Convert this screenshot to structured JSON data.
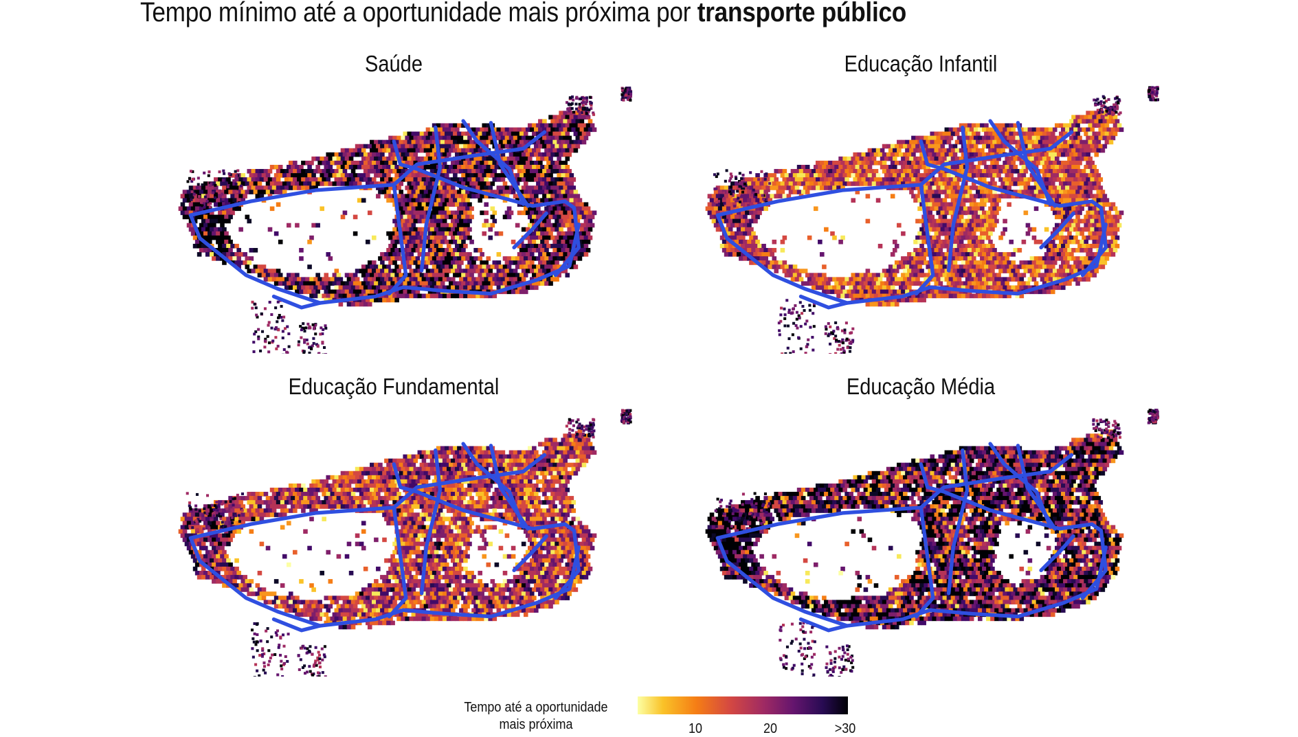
{
  "title": {
    "prefix": "Tempo mínimo até a oportunidade mais próxima por ",
    "bold": "transporte público"
  },
  "panels": [
    {
      "title": "Saúde"
    },
    {
      "title": "Educação Infantil"
    },
    {
      "title": "Educação Fundamental"
    },
    {
      "title": "Educação Média"
    }
  ],
  "legend": {
    "title_line1": "Tempo até a oportunidade",
    "title_line2": "mais próxima",
    "ticks": [
      "10",
      "20",
      ">30"
    ],
    "min": 0,
    "max": 30,
    "tick_values": [
      10,
      20,
      30
    ]
  },
  "colors": {
    "transit_lines": "#2f4fe0",
    "scale_low": "#fcffa4",
    "scale_mid": "#d44842",
    "scale_high": "#000004"
  }
}
